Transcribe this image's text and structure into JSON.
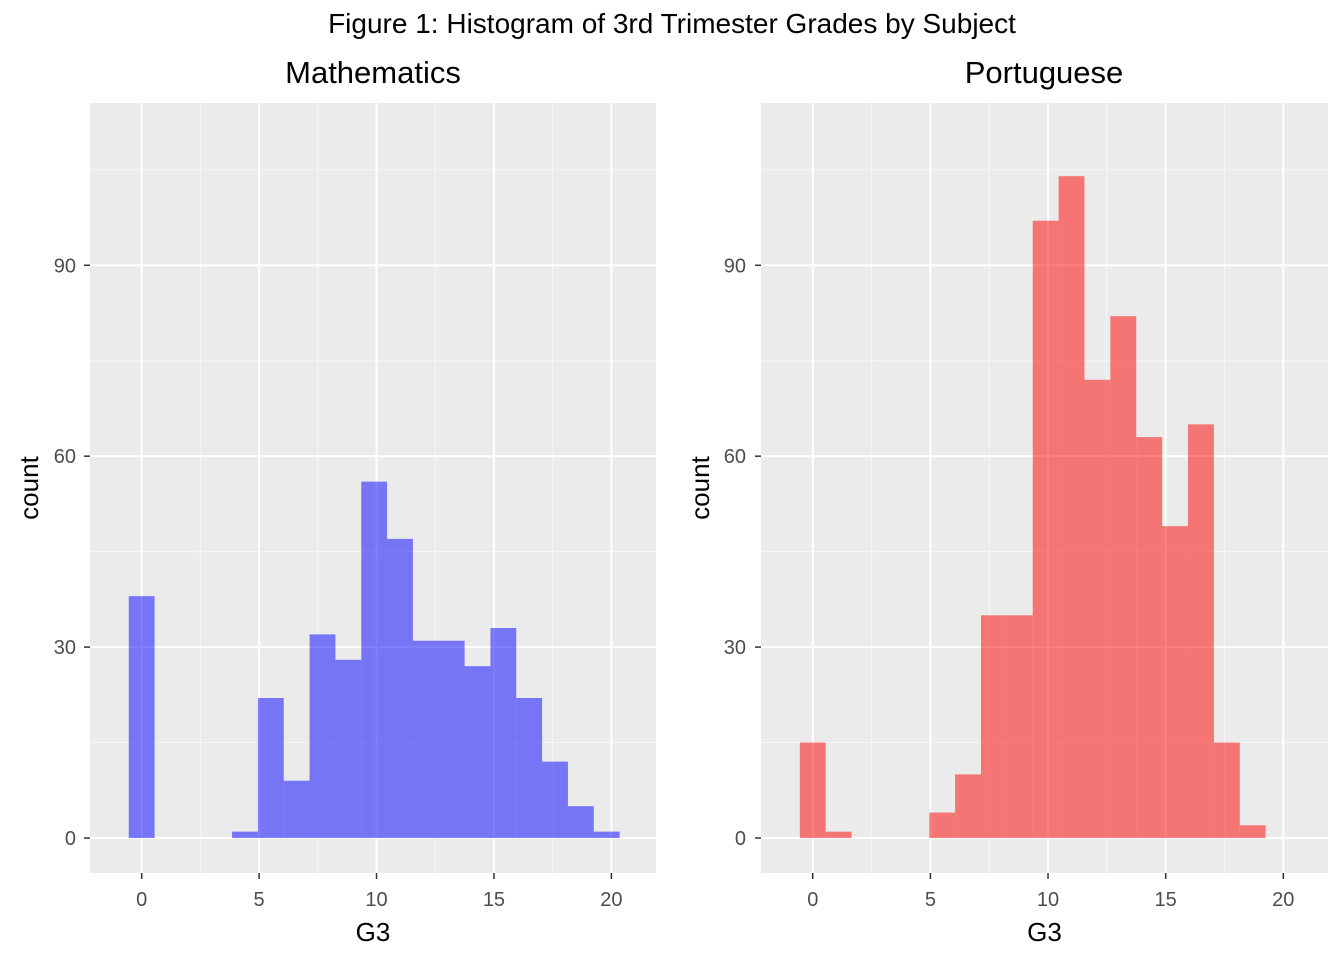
{
  "title": "Figure 1: Histogram of 3rd Trimester Grades by Subject",
  "colors": {
    "panel_background": "#ebebeb",
    "grid_major": "#ffffff",
    "grid_minor": "#f5f5f5",
    "tick_text": "#4d4d4d"
  },
  "chart_data": [
    {
      "type": "bar",
      "title": "Mathematics",
      "xlabel": "G3",
      "ylabel": "count",
      "fill": "#0000ff",
      "fill_opacity": 0.5,
      "bin_width": 1.1,
      "xlim": [
        -2.2,
        21.9
      ],
      "ylim": [
        -5.5,
        115.5
      ],
      "xticks": [
        0,
        5,
        10,
        15,
        20
      ],
      "yticks": [
        0,
        30,
        60,
        90
      ],
      "bins": [
        {
          "x": 0.0,
          "count": 38
        },
        {
          "x": 4.4,
          "count": 1
        },
        {
          "x": 5.5,
          "count": 22
        },
        {
          "x": 6.6,
          "count": 9
        },
        {
          "x": 7.7,
          "count": 32
        },
        {
          "x": 8.8,
          "count": 28
        },
        {
          "x": 9.9,
          "count": 56
        },
        {
          "x": 11.0,
          "count": 47
        },
        {
          "x": 12.1,
          "count": 31
        },
        {
          "x": 13.2,
          "count": 31
        },
        {
          "x": 14.3,
          "count": 27
        },
        {
          "x": 15.4,
          "count": 33
        },
        {
          "x": 16.5,
          "count": 22
        },
        {
          "x": 17.6,
          "count": 12
        },
        {
          "x": 18.7,
          "count": 5
        },
        {
          "x": 19.8,
          "count": 1
        }
      ]
    },
    {
      "type": "bar",
      "title": "Portuguese",
      "xlabel": "G3",
      "ylabel": "count",
      "fill": "#ff0000",
      "fill_opacity": 0.5,
      "bin_width": 1.1,
      "xlim": [
        -2.2,
        21.9
      ],
      "ylim": [
        -5.5,
        115.5
      ],
      "xticks": [
        0,
        5,
        10,
        15,
        20
      ],
      "yticks": [
        0,
        30,
        60,
        90
      ],
      "bins": [
        {
          "x": 0.0,
          "count": 15
        },
        {
          "x": 1.1,
          "count": 1
        },
        {
          "x": 5.5,
          "count": 4
        },
        {
          "x": 6.6,
          "count": 10
        },
        {
          "x": 7.7,
          "count": 35
        },
        {
          "x": 8.8,
          "count": 35
        },
        {
          "x": 9.9,
          "count": 97
        },
        {
          "x": 11.0,
          "count": 104
        },
        {
          "x": 12.1,
          "count": 72
        },
        {
          "x": 13.2,
          "count": 82
        },
        {
          "x": 14.3,
          "count": 63
        },
        {
          "x": 15.4,
          "count": 49
        },
        {
          "x": 16.5,
          "count": 65
        },
        {
          "x": 17.6,
          "count": 15
        },
        {
          "x": 18.7,
          "count": 2
        }
      ]
    }
  ]
}
